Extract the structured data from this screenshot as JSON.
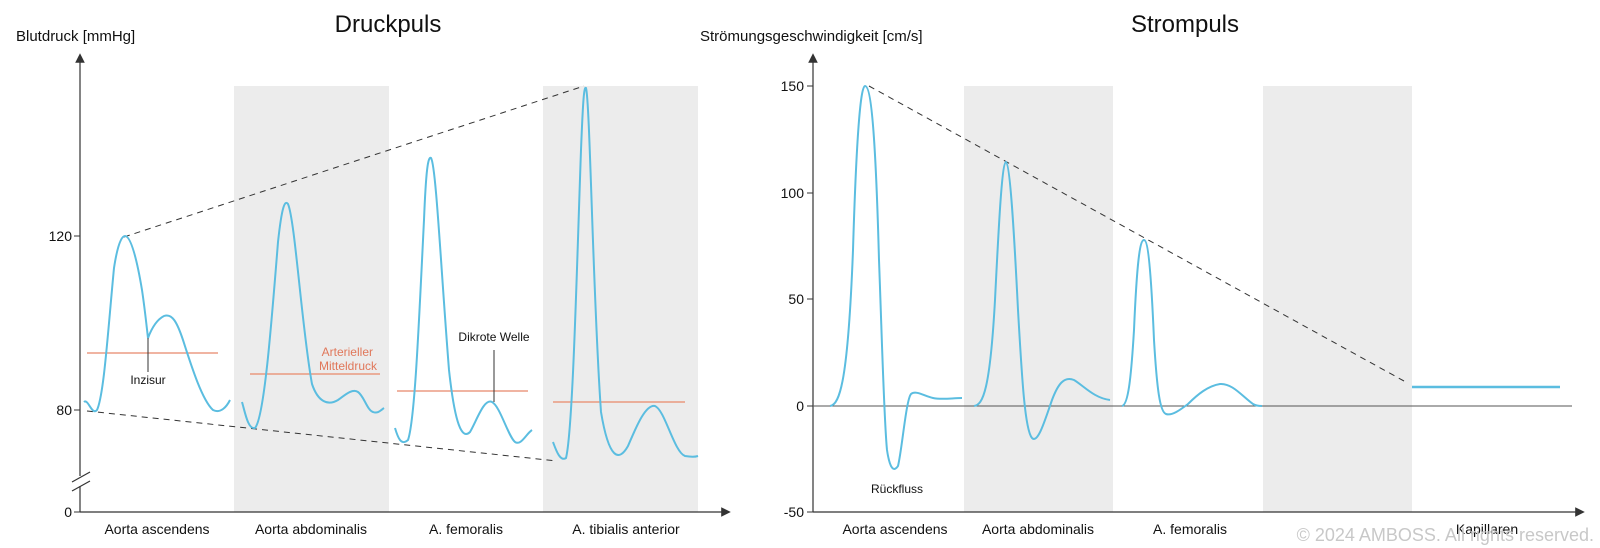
{
  "colors": {
    "curve": "#5bbde0",
    "mean_line": "#e8886a",
    "band": "#ececec",
    "axis": "#333333",
    "dashed": "#333333",
    "annotation_red": "#e0775a",
    "copyright": "#c8c8c8"
  },
  "left_panel": {
    "title": "Druckpuls",
    "axis_title": "Blutdruck [mmHg]",
    "ticks": [
      "120",
      "80",
      "0"
    ],
    "categories": [
      "Aorta ascendens",
      "Aorta abdominalis",
      "A. femoralis",
      "A. tibialis anterior"
    ],
    "annotations": {
      "inzisur": "Inzisur",
      "mean_line_1": "Arterieller",
      "mean_line_2": "Mitteldruck",
      "dikrote": "Dikrote Welle"
    }
  },
  "right_panel": {
    "title": "Strompuls",
    "axis_title": "Strömungsgeschwindigkeit [cm/s]",
    "ticks": [
      "150",
      "100",
      "50",
      "0",
      "-50"
    ],
    "categories": [
      "Aorta ascendens",
      "Aorta abdominalis",
      "A. femoralis",
      "Kapillaren"
    ],
    "annotations": {
      "rueckfluss": "Rückfluss"
    }
  },
  "copyright": "© 2024 AMBOSS. All rights reserved."
}
